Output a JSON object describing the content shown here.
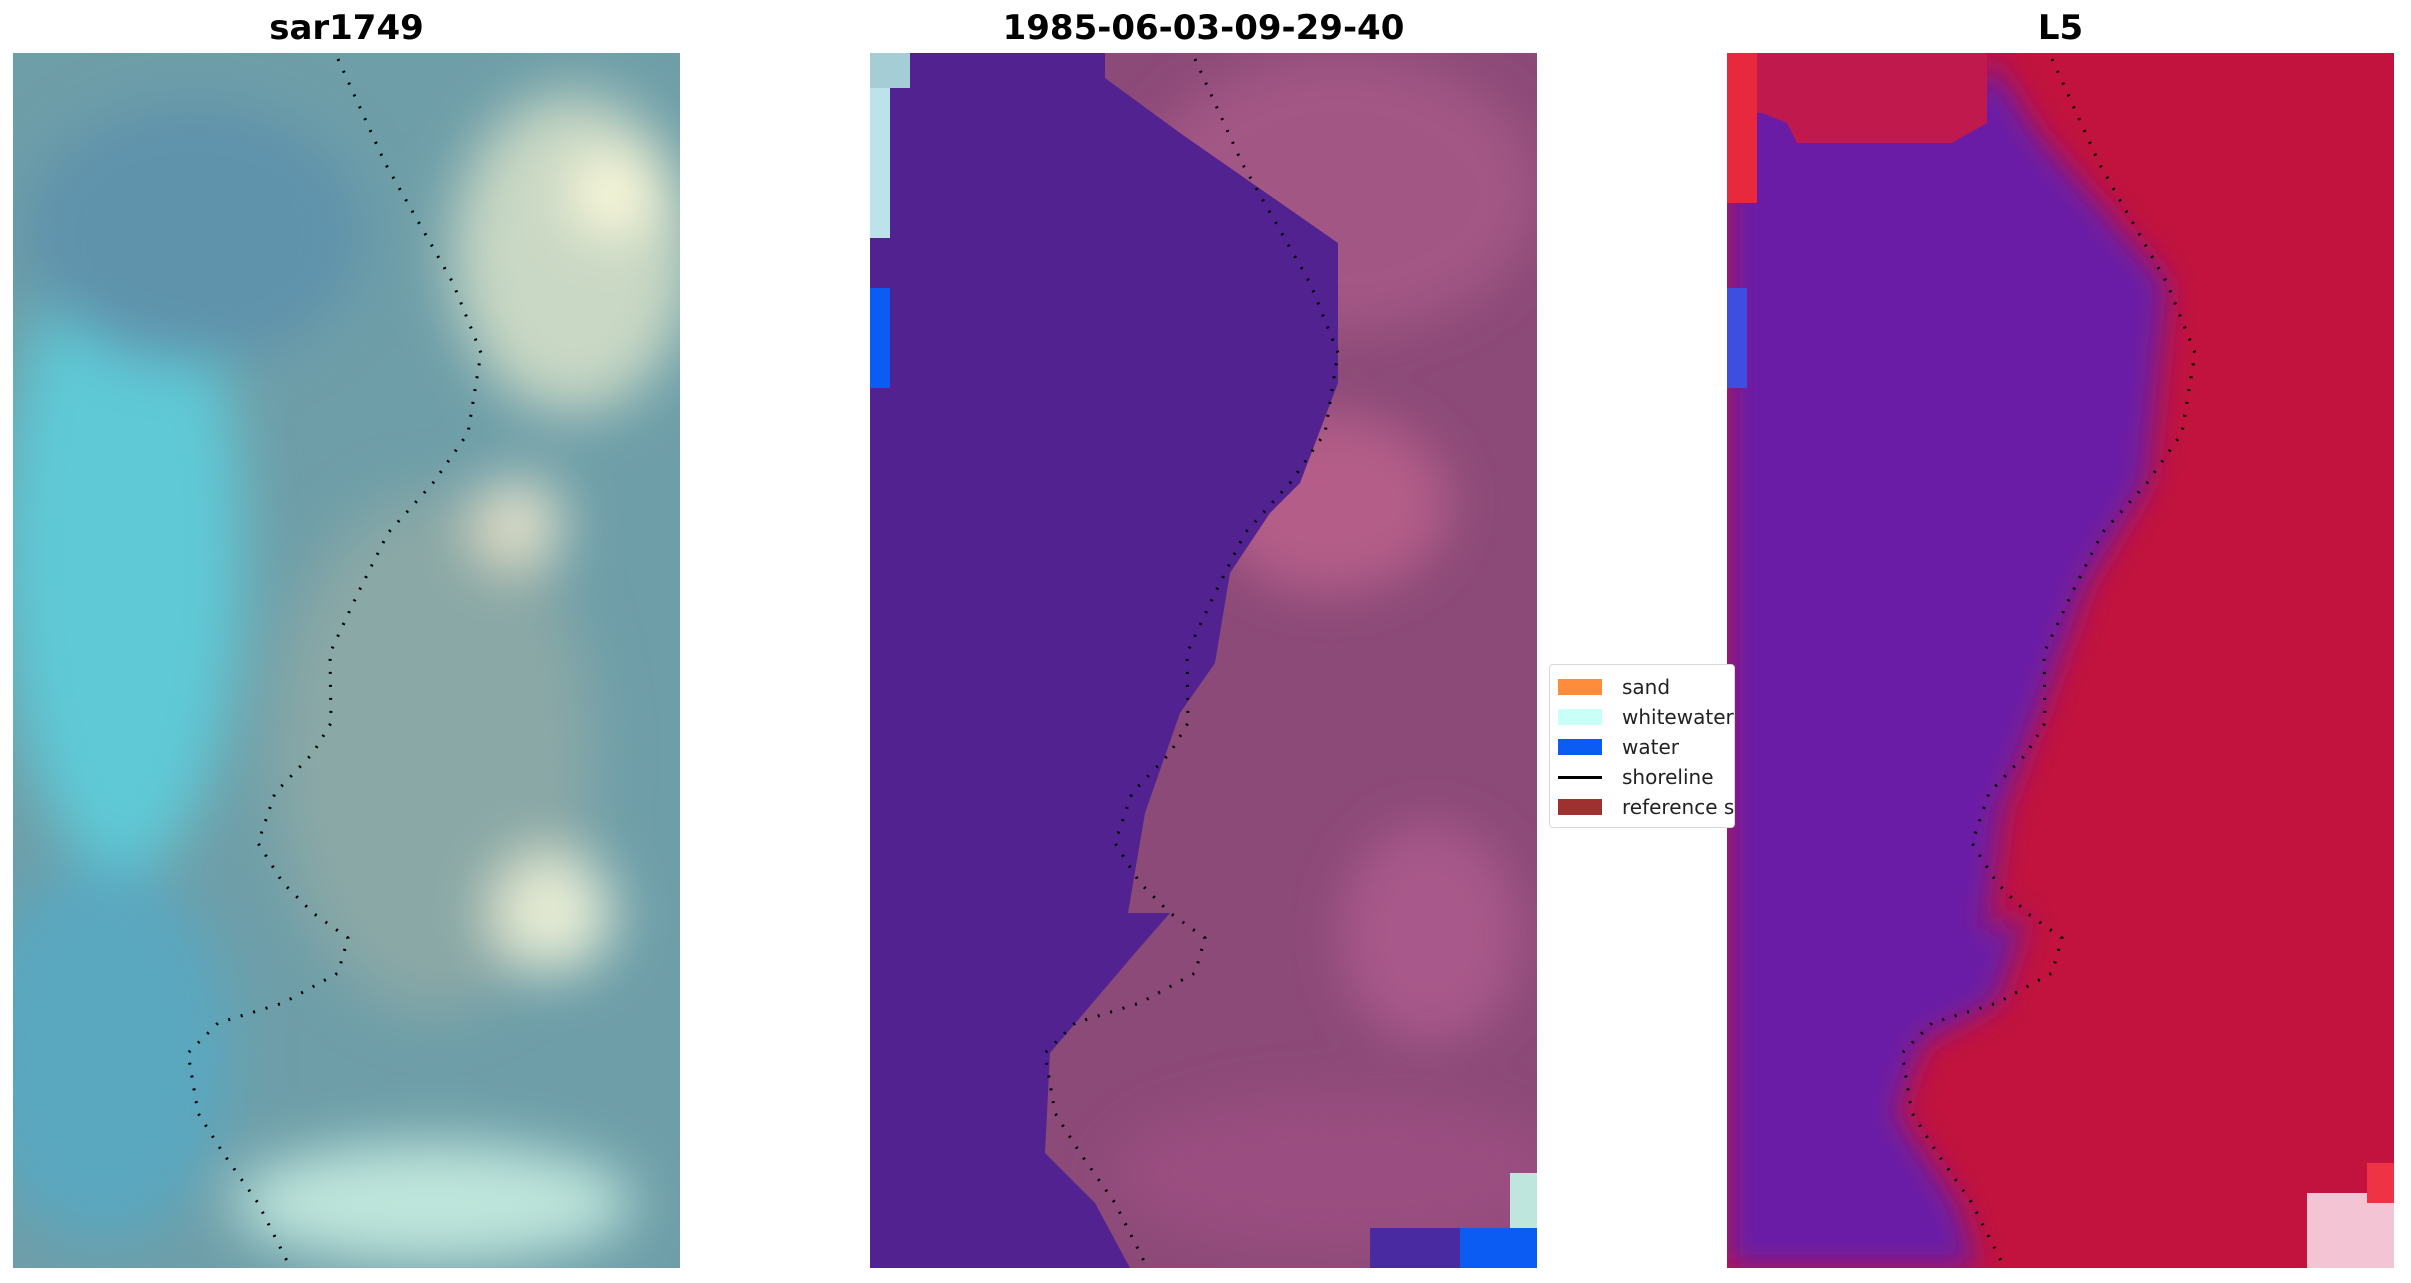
{
  "panels": [
    {
      "title": "sar1749",
      "icon": "sar-image-map"
    },
    {
      "title": "1985-06-03-09-29-40",
      "icon": "classified-map"
    },
    {
      "title": "L5",
      "icon": "probability-map"
    }
  ],
  "legend": {
    "items": [
      {
        "label": "sand",
        "color": "#ff8c3a"
      },
      {
        "label": "whitewater",
        "color": "#c8fff7"
      },
      {
        "label": "water",
        "color": "#0a5cf2"
      },
      {
        "label": "shoreline",
        "color": "#000000"
      },
      {
        "label": "reference s",
        "color": "#9e3030"
      }
    ]
  },
  "colors": {
    "water_class": "#522291",
    "land_tint": "#9a4a78",
    "l5_water": "#6a1ea6",
    "l5_land": "#c1133e"
  }
}
